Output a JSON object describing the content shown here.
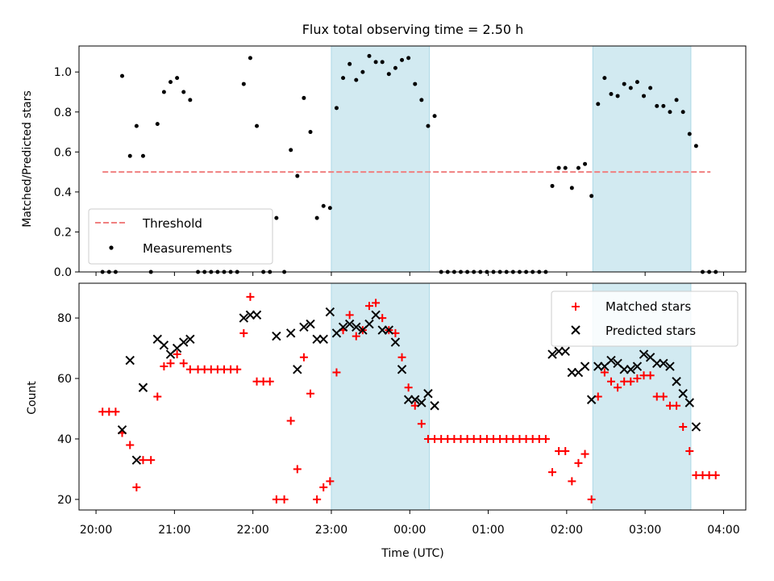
{
  "title": "Flux total observing time = 2.50 h",
  "colors": {
    "threshold": "#f08080",
    "measurement": "#000000",
    "matched": "#ff0000",
    "predicted": "#000000",
    "span": "#add8e6"
  },
  "chart_data": [
    {
      "type": "scatter",
      "ylabel": "Matched/Predicted stars",
      "ylim": [
        0,
        1.13
      ],
      "yticks": [
        0.0,
        0.2,
        0.4,
        0.6,
        0.8,
        1.0
      ],
      "yticklabels": [
        "0.0",
        "0.2",
        "0.4",
        "0.6",
        "0.8",
        "1.0"
      ],
      "xlim": [
        "19:47",
        "04:17"
      ],
      "shaded_spans": [
        [
          "23:00",
          "00:15"
        ],
        [
          "02:20",
          "03:35"
        ]
      ],
      "threshold": {
        "name": "Threshold",
        "y": 0.5,
        "x_range": [
          "20:05",
          "03:50"
        ]
      },
      "legend": {
        "position": "lower-left",
        "entries": [
          "Threshold",
          "Measurements"
        ]
      },
      "series": [
        {
          "name": "Measurements",
          "points": [
            [
              "20:05",
              0
            ],
            [
              "20:10",
              0
            ],
            [
              "20:15",
              0
            ],
            [
              "20:20",
              0.98
            ],
            [
              "20:26",
              0.58
            ],
            [
              "20:31",
              0.73
            ],
            [
              "20:36",
              0.58
            ],
            [
              "20:42",
              0
            ],
            [
              "20:47",
              0.74
            ],
            [
              "20:52",
              0.9
            ],
            [
              "20:57",
              0.95
            ],
            [
              "21:02",
              0.97
            ],
            [
              "21:07",
              0.9
            ],
            [
              "21:12",
              0.86
            ],
            [
              "21:18",
              0
            ],
            [
              "21:23",
              0
            ],
            [
              "21:28",
              0
            ],
            [
              "21:33",
              0
            ],
            [
              "21:38",
              0
            ],
            [
              "21:43",
              0
            ],
            [
              "21:48",
              0
            ],
            [
              "21:53",
              0.94
            ],
            [
              "21:58",
              1.07
            ],
            [
              "22:03",
              0.73
            ],
            [
              "22:08",
              0
            ],
            [
              "22:13",
              0
            ],
            [
              "22:18",
              0.27
            ],
            [
              "22:24",
              0
            ],
            [
              "22:29",
              0.61
            ],
            [
              "22:34",
              0.48
            ],
            [
              "22:39",
              0.87
            ],
            [
              "22:44",
              0.7
            ],
            [
              "22:49",
              0.27
            ],
            [
              "22:54",
              0.33
            ],
            [
              "22:59",
              0.32
            ],
            [
              "23:04",
              0.82
            ],
            [
              "23:09",
              0.97
            ],
            [
              "23:14",
              1.04
            ],
            [
              "23:19",
              0.96
            ],
            [
              "23:24",
              1.0
            ],
            [
              "23:29",
              1.08
            ],
            [
              "23:34",
              1.05
            ],
            [
              "23:39",
              1.05
            ],
            [
              "23:44",
              0.99
            ],
            [
              "23:49",
              1.02
            ],
            [
              "23:54",
              1.06
            ],
            [
              "23:59",
              1.07
            ],
            [
              "00:04",
              0.94
            ],
            [
              "00:09",
              0.86
            ],
            [
              "00:14",
              0.73
            ],
            [
              "00:19",
              0.78
            ],
            [
              "00:24",
              0
            ],
            [
              "00:29",
              0
            ],
            [
              "00:34",
              0
            ],
            [
              "00:39",
              0
            ],
            [
              "00:44",
              0
            ],
            [
              "00:49",
              0
            ],
            [
              "00:54",
              0
            ],
            [
              "00:59",
              0
            ],
            [
              "01:04",
              0
            ],
            [
              "01:09",
              0
            ],
            [
              "01:14",
              0
            ],
            [
              "01:19",
              0
            ],
            [
              "01:24",
              0
            ],
            [
              "01:29",
              0
            ],
            [
              "01:34",
              0
            ],
            [
              "01:39",
              0
            ],
            [
              "01:44",
              0
            ],
            [
              "01:49",
              0.43
            ],
            [
              "01:54",
              0.52
            ],
            [
              "01:59",
              0.52
            ],
            [
              "02:04",
              0.42
            ],
            [
              "02:09",
              0.52
            ],
            [
              "02:14",
              0.54
            ],
            [
              "02:19",
              0.38
            ],
            [
              "02:24",
              0.84
            ],
            [
              "02:29",
              0.97
            ],
            [
              "02:34",
              0.89
            ],
            [
              "02:39",
              0.88
            ],
            [
              "02:44",
              0.94
            ],
            [
              "02:49",
              0.92
            ],
            [
              "02:54",
              0.95
            ],
            [
              "02:59",
              0.88
            ],
            [
              "03:04",
              0.92
            ],
            [
              "03:09",
              0.83
            ],
            [
              "03:14",
              0.83
            ],
            [
              "03:19",
              0.8
            ],
            [
              "03:24",
              0.86
            ],
            [
              "03:29",
              0.8
            ],
            [
              "03:34",
              0.69
            ],
            [
              "03:39",
              0.63
            ],
            [
              "03:44",
              0
            ],
            [
              "03:49",
              0
            ],
            [
              "03:54",
              0
            ]
          ]
        }
      ]
    },
    {
      "type": "scatter",
      "xlabel": "Time (UTC)",
      "ylabel": "Count",
      "ylim": [
        16.5,
        91.5
      ],
      "yticks": [
        20,
        40,
        60,
        80
      ],
      "yticklabels": [
        "20",
        "40",
        "60",
        "80"
      ],
      "xlim": [
        "19:47",
        "04:17"
      ],
      "xticks": [
        "20:00",
        "21:00",
        "22:00",
        "23:00",
        "00:00",
        "01:00",
        "02:00",
        "03:00",
        "04:00"
      ],
      "shaded_spans": [
        [
          "23:00",
          "00:15"
        ],
        [
          "02:20",
          "03:35"
        ]
      ],
      "legend": {
        "position": "top-right",
        "entries": [
          "Matched stars",
          "Predicted stars"
        ]
      },
      "series": [
        {
          "name": "Matched stars",
          "points": [
            [
              "20:05",
              49
            ],
            [
              "20:10",
              49
            ],
            [
              "20:15",
              49
            ],
            [
              "20:20",
              42
            ],
            [
              "20:26",
              38
            ],
            [
              "20:31",
              24
            ],
            [
              "20:36",
              33
            ],
            [
              "20:42",
              33
            ],
            [
              "20:47",
              54
            ],
            [
              "20:52",
              64
            ],
            [
              "20:57",
              65
            ],
            [
              "21:02",
              68
            ],
            [
              "21:07",
              65
            ],
            [
              "21:12",
              63
            ],
            [
              "21:18",
              63
            ],
            [
              "21:23",
              63
            ],
            [
              "21:28",
              63
            ],
            [
              "21:33",
              63
            ],
            [
              "21:38",
              63
            ],
            [
              "21:43",
              63
            ],
            [
              "21:48",
              63
            ],
            [
              "21:53",
              75
            ],
            [
              "21:58",
              87
            ],
            [
              "22:03",
              59
            ],
            [
              "22:08",
              59
            ],
            [
              "22:13",
              59
            ],
            [
              "22:18",
              20
            ],
            [
              "22:24",
              20
            ],
            [
              "22:29",
              46
            ],
            [
              "22:34",
              30
            ],
            [
              "22:39",
              67
            ],
            [
              "22:44",
              55
            ],
            [
              "22:49",
              20
            ],
            [
              "22:54",
              24
            ],
            [
              "22:59",
              26
            ],
            [
              "23:04",
              62
            ],
            [
              "23:09",
              76
            ],
            [
              "23:14",
              81
            ],
            [
              "23:19",
              74
            ],
            [
              "23:24",
              76
            ],
            [
              "23:29",
              84
            ],
            [
              "23:34",
              85
            ],
            [
              "23:39",
              80
            ],
            [
              "23:44",
              76
            ],
            [
              "23:49",
              75
            ],
            [
              "23:54",
              67
            ],
            [
              "23:59",
              57
            ],
            [
              "00:04",
              51
            ],
            [
              "00:09",
              45
            ],
            [
              "00:14",
              40
            ],
            [
              "00:19",
              40
            ],
            [
              "00:24",
              40
            ],
            [
              "00:29",
              40
            ],
            [
              "00:34",
              40
            ],
            [
              "00:39",
              40
            ],
            [
              "00:44",
              40
            ],
            [
              "00:49",
              40
            ],
            [
              "00:54",
              40
            ],
            [
              "00:59",
              40
            ],
            [
              "01:04",
              40
            ],
            [
              "01:09",
              40
            ],
            [
              "01:14",
              40
            ],
            [
              "01:19",
              40
            ],
            [
              "01:24",
              40
            ],
            [
              "01:29",
              40
            ],
            [
              "01:34",
              40
            ],
            [
              "01:39",
              40
            ],
            [
              "01:44",
              40
            ],
            [
              "01:49",
              29
            ],
            [
              "01:54",
              36
            ],
            [
              "01:59",
              36
            ],
            [
              "02:04",
              26
            ],
            [
              "02:09",
              32
            ],
            [
              "02:14",
              35
            ],
            [
              "02:19",
              20
            ],
            [
              "02:24",
              54
            ],
            [
              "02:29",
              62
            ],
            [
              "02:34",
              59
            ],
            [
              "02:39",
              57
            ],
            [
              "02:44",
              59
            ],
            [
              "02:49",
              59
            ],
            [
              "02:54",
              60
            ],
            [
              "02:59",
              61
            ],
            [
              "03:04",
              61
            ],
            [
              "03:09",
              54
            ],
            [
              "03:14",
              54
            ],
            [
              "03:19",
              51
            ],
            [
              "03:24",
              51
            ],
            [
              "03:29",
              44
            ],
            [
              "03:34",
              36
            ],
            [
              "03:39",
              28
            ],
            [
              "03:44",
              28
            ],
            [
              "03:49",
              28
            ],
            [
              "03:54",
              28
            ]
          ]
        },
        {
          "name": "Predicted stars",
          "points": [
            [
              "20:20",
              43
            ],
            [
              "20:26",
              66
            ],
            [
              "20:31",
              33
            ],
            [
              "20:36",
              57
            ],
            [
              "20:47",
              73
            ],
            [
              "20:52",
              71
            ],
            [
              "20:57",
              68
            ],
            [
              "21:02",
              70
            ],
            [
              "21:07",
              72
            ],
            [
              "21:12",
              73
            ],
            [
              "21:53",
              80
            ],
            [
              "21:58",
              81
            ],
            [
              "22:03",
              81
            ],
            [
              "22:18",
              74
            ],
            [
              "22:29",
              75
            ],
            [
              "22:34",
              63
            ],
            [
              "22:39",
              77
            ],
            [
              "22:44",
              78
            ],
            [
              "22:49",
              73
            ],
            [
              "22:54",
              73
            ],
            [
              "22:59",
              82
            ],
            [
              "23:04",
              75
            ],
            [
              "23:09",
              77
            ],
            [
              "23:14",
              78
            ],
            [
              "23:19",
              77
            ],
            [
              "23:24",
              76
            ],
            [
              "23:29",
              78
            ],
            [
              "23:34",
              81
            ],
            [
              "23:39",
              76
            ],
            [
              "23:44",
              76
            ],
            [
              "23:49",
              72
            ],
            [
              "23:54",
              63
            ],
            [
              "23:59",
              53
            ],
            [
              "00:04",
              53
            ],
            [
              "00:09",
              52
            ],
            [
              "00:14",
              55
            ],
            [
              "00:19",
              51
            ],
            [
              "01:49",
              68
            ],
            [
              "01:54",
              69
            ],
            [
              "01:59",
              69
            ],
            [
              "02:04",
              62
            ],
            [
              "02:09",
              62
            ],
            [
              "02:14",
              64
            ],
            [
              "02:19",
              53
            ],
            [
              "02:24",
              64
            ],
            [
              "02:29",
              64
            ],
            [
              "02:34",
              66
            ],
            [
              "02:39",
              65
            ],
            [
              "02:44",
              63
            ],
            [
              "02:49",
              63
            ],
            [
              "02:54",
              64
            ],
            [
              "02:59",
              68
            ],
            [
              "03:04",
              67
            ],
            [
              "03:09",
              65
            ],
            [
              "03:14",
              65
            ],
            [
              "03:19",
              64
            ],
            [
              "03:24",
              59
            ],
            [
              "03:29",
              55
            ],
            [
              "03:34",
              52
            ],
            [
              "03:39",
              44
            ]
          ]
        }
      ]
    }
  ]
}
